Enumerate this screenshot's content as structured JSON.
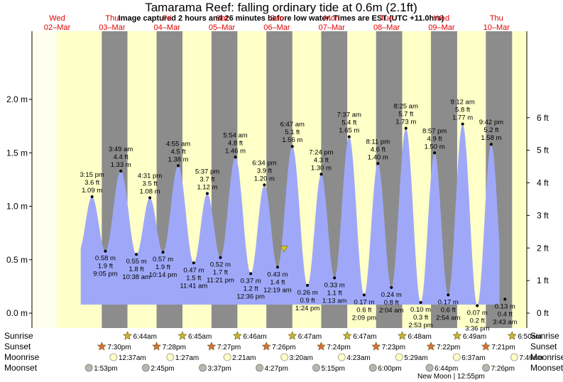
{
  "chart_data": {
    "type": "area",
    "title": "Tamarama Reef: falling  ordinary tide at 0.6m (2.1ft)",
    "subtitle": "Image captured 2 hours and 26 minutes before low water. Times are EST (UTC +11.0hrs)",
    "days": [
      {
        "dow": "Wed",
        "date": "02–Mar"
      },
      {
        "dow": "Thu",
        "date": "03–Mar"
      },
      {
        "dow": "Fri",
        "date": "04–Mar"
      },
      {
        "dow": "Sat",
        "date": "05–Mar"
      },
      {
        "dow": "Sun",
        "date": "06–Mar"
      },
      {
        "dow": "Mon",
        "date": "07–Mar"
      },
      {
        "dow": "Tue",
        "date": "08–Mar"
      },
      {
        "dow": "Wed",
        "date": "09–Mar"
      },
      {
        "dow": "Thu",
        "date": "10–Mar"
      }
    ],
    "y_left_ticks": [
      {
        "value": 0.0,
        "label": "0.0 m"
      },
      {
        "value": 0.5,
        "label": "0.5 m"
      },
      {
        "value": 1.0,
        "label": "1.0 m"
      },
      {
        "value": 1.5,
        "label": "1.5 m"
      },
      {
        "value": 2.0,
        "label": "2.0 m"
      }
    ],
    "y_right_ticks": [
      {
        "value": 0,
        "label": "0 ft"
      },
      {
        "value": 1,
        "label": "1 ft"
      },
      {
        "value": 2,
        "label": "2 ft"
      },
      {
        "value": 3,
        "label": "3 ft"
      },
      {
        "value": 4,
        "label": "4 ft"
      },
      {
        "value": 5,
        "label": "5 ft"
      },
      {
        "value": 6,
        "label": "6 ft"
      }
    ],
    "ylim": [
      -0.1,
      2.1
    ],
    "current_level": 0.6,
    "night_bands": [
      {
        "start": "03-02 19:30",
        "end": "03-03 06:44"
      },
      {
        "start": "03-03 19:28",
        "end": "03-04 06:45"
      },
      {
        "start": "03-04 19:27",
        "end": "03-05 06:46"
      },
      {
        "start": "03-05 19:26",
        "end": "03-06 06:47"
      },
      {
        "start": "03-06 19:24",
        "end": "03-07 06:47"
      },
      {
        "start": "03-07 19:23",
        "end": "03-08 06:48"
      },
      {
        "start": "03-08 19:22",
        "end": "03-09 06:49"
      },
      {
        "start": "03-09 19:21",
        "end": "03-10 06:50"
      }
    ],
    "tides": [
      {
        "time": "3:15 pm",
        "ft": "3.6 ft",
        "m": "1.09 m",
        "type": "high",
        "x": "03-02 15:15",
        "h": 1.09
      },
      {
        "time": "9:05 pm",
        "ft": "1.9 ft",
        "m": "0.58 m",
        "type": "low",
        "x": "03-02 21:05",
        "h": 0.58
      },
      {
        "time": "3:49 am",
        "ft": "4.4 ft",
        "m": "1.33 m",
        "type": "high",
        "x": "03-03 03:49",
        "h": 1.33
      },
      {
        "time": "10:38 am",
        "ft": "1.8 ft",
        "m": "0.55 m",
        "type": "low",
        "x": "03-03 10:38",
        "h": 0.55
      },
      {
        "time": "4:31 pm",
        "ft": "3.5 ft",
        "m": "1.08 m",
        "type": "high",
        "x": "03-03 16:31",
        "h": 1.08
      },
      {
        "time": "10:14 pm",
        "ft": "1.9 ft",
        "m": "0.57 m",
        "type": "low",
        "x": "03-03 22:14",
        "h": 0.57
      },
      {
        "time": "4:55 am",
        "ft": "4.5 ft",
        "m": "1.38 m",
        "type": "high",
        "x": "03-04 04:55",
        "h": 1.38
      },
      {
        "time": "11:41 am",
        "ft": "1.5 ft",
        "m": "0.47 m",
        "type": "low",
        "x": "03-04 11:41",
        "h": 0.47
      },
      {
        "time": "5:37 pm",
        "ft": "3.7 ft",
        "m": "1.12 m",
        "type": "high",
        "x": "03-04 17:37",
        "h": 1.12
      },
      {
        "time": "11:21 pm",
        "ft": "1.7 ft",
        "m": "0.52 m",
        "type": "low",
        "x": "03-04 23:21",
        "h": 0.52
      },
      {
        "time": "5:54 am",
        "ft": "4.8 ft",
        "m": "1.46 m",
        "type": "high",
        "x": "03-05 05:54",
        "h": 1.46
      },
      {
        "time": "12:36 pm",
        "ft": "1.2 ft",
        "m": "0.37 m",
        "type": "low",
        "x": "03-05 12:36",
        "h": 0.37
      },
      {
        "time": "6:34 pm",
        "ft": "3.9 ft",
        "m": "1.20 m",
        "type": "high",
        "x": "03-05 18:34",
        "h": 1.2
      },
      {
        "time": "12:19 am",
        "ft": "1.4 ft",
        "m": "0.43 m",
        "type": "low",
        "x": "03-06 00:19",
        "h": 0.43
      },
      {
        "time": "6:47 am",
        "ft": "5.1 ft",
        "m": "1.56 m",
        "type": "high",
        "x": "03-06 06:47",
        "h": 1.56
      },
      {
        "time": "1:24 pm",
        "ft": "0.9 ft",
        "m": "0.26 m",
        "type": "low",
        "x": "03-06 13:24",
        "h": 0.26
      },
      {
        "time": "7:24 pm",
        "ft": "4.3 ft",
        "m": "1.30 m",
        "type": "high",
        "x": "03-06 19:24",
        "h": 1.3
      },
      {
        "time": "1:13 am",
        "ft": "1.1 ft",
        "m": "0.33 m",
        "type": "low",
        "x": "03-07 01:13",
        "h": 0.33
      },
      {
        "time": "7:37 am",
        "ft": "5.4 ft",
        "m": "1.65 m",
        "type": "high",
        "x": "03-07 07:37",
        "h": 1.65
      },
      {
        "time": "2:09 pm",
        "ft": "0.6 ft",
        "m": "0.17 m",
        "type": "low",
        "x": "03-07 14:09",
        "h": 0.17
      },
      {
        "time": "8:11 pm",
        "ft": "4.6 ft",
        "m": "1.40 m",
        "type": "high",
        "x": "03-07 20:11",
        "h": 1.4
      },
      {
        "time": "2:04 am",
        "ft": "0.8 ft",
        "m": "0.24 m",
        "type": "low",
        "x": "03-08 02:04",
        "h": 0.24
      },
      {
        "time": "8:25 am",
        "ft": "5.7 ft",
        "m": "1.73 m",
        "type": "high",
        "x": "03-08 08:25",
        "h": 1.73
      },
      {
        "time": "2:53 pm",
        "ft": "0.3 ft",
        "m": "0.10 m",
        "type": "low",
        "x": "03-08 14:53",
        "h": 0.1
      },
      {
        "time": "8:57 pm",
        "ft": "4.9 ft",
        "m": "1.50 m",
        "type": "high",
        "x": "03-08 20:57",
        "h": 1.5
      },
      {
        "time": "2:54 am",
        "ft": "0.6 ft",
        "m": "0.17 m",
        "type": "low",
        "x": "03-09 02:54",
        "h": 0.17
      },
      {
        "time": "9:12 am",
        "ft": "5.8 ft",
        "m": "1.77 m",
        "type": "high",
        "x": "03-09 09:12",
        "h": 1.77
      },
      {
        "time": "3:36 pm",
        "ft": "0.2 ft",
        "m": "0.07 m",
        "type": "low",
        "x": "03-09 15:36",
        "h": 0.07
      },
      {
        "time": "9:42 pm",
        "ft": "5.2 ft",
        "m": "1.58 m",
        "type": "high",
        "x": "03-09 21:42",
        "h": 1.58
      },
      {
        "time": "3:43 am",
        "ft": "0.4 ft",
        "m": "0.13 m",
        "type": "low",
        "x": "03-10 03:43",
        "h": 0.13
      }
    ]
  },
  "events": {
    "row_labels": {
      "sunrise": "Sunrise",
      "sunset": "Sunset",
      "moonrise": "Moonrise",
      "moonset": "Moonset"
    },
    "sunrise": [
      {
        "x": "03-03 06:44",
        "text": "6:44am"
      },
      {
        "x": "03-04 06:45",
        "text": "6:45am"
      },
      {
        "x": "03-05 06:46",
        "text": "6:46am"
      },
      {
        "x": "03-06 06:47",
        "text": "6:47am"
      },
      {
        "x": "03-07 06:47",
        "text": "6:47am"
      },
      {
        "x": "03-08 06:48",
        "text": "6:48am"
      },
      {
        "x": "03-09 06:49",
        "text": "6:49am"
      },
      {
        "x": "03-10 06:50",
        "text": "6:50am"
      }
    ],
    "sunset": [
      {
        "x": "03-02 19:30",
        "text": "7:30pm"
      },
      {
        "x": "03-03 19:28",
        "text": "7:28pm"
      },
      {
        "x": "03-04 19:27",
        "text": "7:27pm"
      },
      {
        "x": "03-05 19:26",
        "text": "7:26pm"
      },
      {
        "x": "03-06 19:24",
        "text": "7:24pm"
      },
      {
        "x": "03-07 19:23",
        "text": "7:23pm"
      },
      {
        "x": "03-08 19:22",
        "text": "7:22pm"
      },
      {
        "x": "03-09 19:21",
        "text": "7:21pm"
      }
    ],
    "moonrise": [
      {
        "x": "03-03 00:37",
        "text": "12:37am"
      },
      {
        "x": "03-04 01:27",
        "text": "1:27am"
      },
      {
        "x": "03-05 02:21",
        "text": "2:21am"
      },
      {
        "x": "03-06 03:20",
        "text": "3:20am"
      },
      {
        "x": "03-07 04:23",
        "text": "4:23am"
      },
      {
        "x": "03-08 05:29",
        "text": "5:29am"
      },
      {
        "x": "03-09 06:37",
        "text": "6:37am"
      },
      {
        "x": "03-10 07:46",
        "text": "7:46am"
      }
    ],
    "moonset": [
      {
        "x": "03-02 13:53",
        "text": "1:53pm"
      },
      {
        "x": "03-03 14:45",
        "text": "2:45pm"
      },
      {
        "x": "03-04 15:37",
        "text": "3:37pm"
      },
      {
        "x": "03-05 16:27",
        "text": "4:27pm"
      },
      {
        "x": "03-06 17:15",
        "text": "5:15pm"
      },
      {
        "x": "03-07 18:00",
        "text": "6:00pm"
      },
      {
        "x": "03-08 18:44",
        "text": "6:44pm"
      },
      {
        "x": "03-09 19:26",
        "text": "7:26pm"
      }
    ],
    "new_moon": "New Moon | 12:55pm"
  },
  "colors": {
    "day": "#ffffc8",
    "night": "#8c8c8c",
    "water": "#9fa8f8",
    "margin": "#fffff0",
    "sun": "#c8b432",
    "sunset_star": "#d8703a",
    "moon": "#ffffc8",
    "moon_set": "#b8b8b0",
    "marker": "#dcc820"
  }
}
